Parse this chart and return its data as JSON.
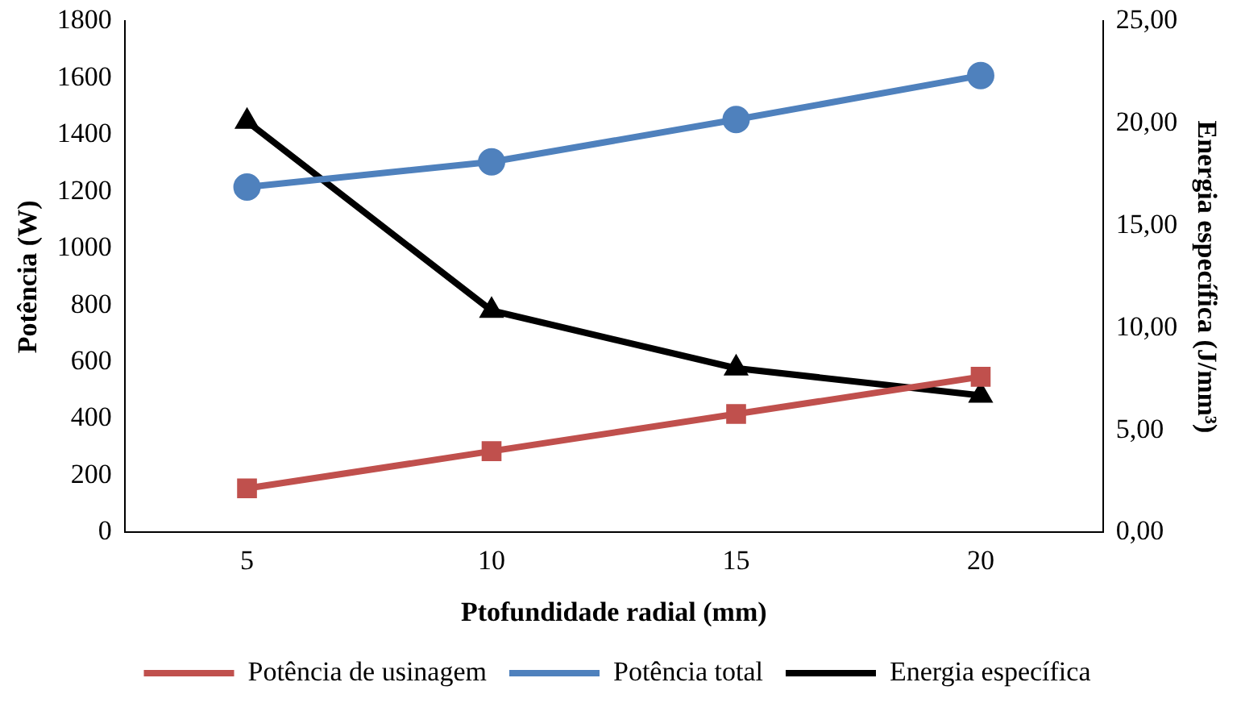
{
  "chart_data": {
    "type": "line",
    "xlabel": "Ptofundidade radial (mm)",
    "ylabel": "Potência (W)",
    "y2label": "Energia específica (J/mm³)",
    "categories": [
      "5",
      "10",
      "15",
      "20"
    ],
    "series": [
      {
        "name": "Potência de usinagem",
        "color": "#c0504d",
        "marker": "square",
        "values": [
          155,
          286,
          417,
          548
        ]
      },
      {
        "name": "Potência total",
        "color": "#4f81bd",
        "marker": "circle",
        "values": [
          1216,
          1305,
          1454,
          1609
        ]
      },
      {
        "name": "Energia específica",
        "color": "#000000",
        "marker": "triangle",
        "axis": "y2",
        "values": [
          20.1,
          10.85,
          8.03,
          6.7
        ]
      }
    ],
    "ylim": [
      0,
      1800
    ],
    "yticks": [
      0,
      200,
      400,
      600,
      800,
      1000,
      1200,
      1400,
      1600,
      1800
    ],
    "y2lim": [
      0,
      25
    ],
    "y2ticks": [
      {
        "value": 0,
        "label": "0,00"
      },
      {
        "value": 5,
        "label": "5,00"
      },
      {
        "value": 10,
        "label": "10,00"
      },
      {
        "value": 15,
        "label": "15,00"
      },
      {
        "value": 20,
        "label": "20,00"
      },
      {
        "value": 25,
        "label": "25,00"
      }
    ],
    "grid": false,
    "legend": "bottom",
    "line_style": "solid"
  }
}
